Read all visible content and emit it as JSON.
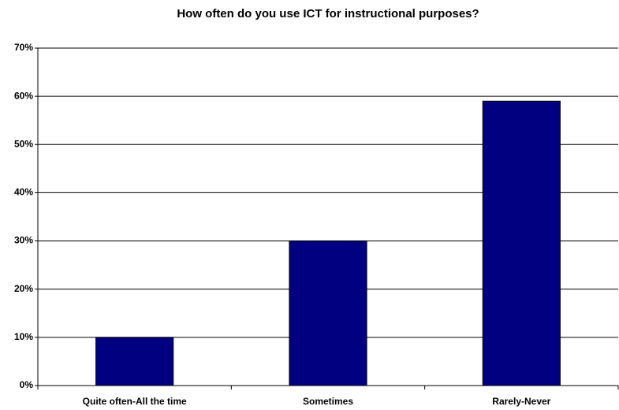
{
  "chart_data": {
    "type": "bar",
    "title": "How often do you use ICT for instructional purposes?",
    "categories": [
      "Quite often-All the time",
      "Sometimes",
      "Rarely-Never"
    ],
    "values": [
      10,
      30,
      59
    ],
    "color": "#000080",
    "ylim": [
      0,
      70
    ],
    "yticks": [
      {
        "value": 0,
        "label": "0%"
      },
      {
        "value": 10,
        "label": "10%"
      },
      {
        "value": 20,
        "label": "20%"
      },
      {
        "value": 30,
        "label": "30%"
      },
      {
        "value": 40,
        "label": "40%"
      },
      {
        "value": 50,
        "label": "50%"
      },
      {
        "value": 60,
        "label": "60%"
      },
      {
        "value": 70,
        "label": "70%"
      }
    ],
    "grid": true
  }
}
